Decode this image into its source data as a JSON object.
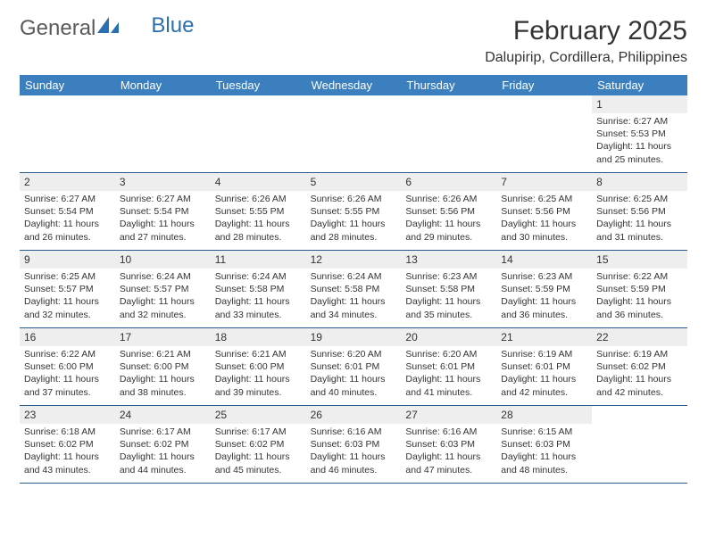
{
  "brand": {
    "part1": "General",
    "part2": "Blue"
  },
  "title": "February 2025",
  "location": "Dalupirip, Cordillera, Philippines",
  "day_headers": [
    "Sunday",
    "Monday",
    "Tuesday",
    "Wednesday",
    "Thursday",
    "Friday",
    "Saturday"
  ],
  "colors": {
    "header_bg": "#3b7fbf",
    "header_text": "#ffffff",
    "row_divider": "#2a5a8a",
    "daynum_bg": "#eeeeee",
    "text": "#333333",
    "brand_gray": "#5a5a5a",
    "brand_blue": "#2a6fb0",
    "page_bg": "#ffffff"
  },
  "layout": {
    "columns": 7,
    "font_daynum": 12,
    "font_info": 10.5,
    "font_header": 13,
    "font_title": 30,
    "font_location": 16
  },
  "weeks": [
    [
      {
        "n": "",
        "sunrise": "",
        "sunset": "",
        "daylight": ""
      },
      {
        "n": "",
        "sunrise": "",
        "sunset": "",
        "daylight": ""
      },
      {
        "n": "",
        "sunrise": "",
        "sunset": "",
        "daylight": ""
      },
      {
        "n": "",
        "sunrise": "",
        "sunset": "",
        "daylight": ""
      },
      {
        "n": "",
        "sunrise": "",
        "sunset": "",
        "daylight": ""
      },
      {
        "n": "",
        "sunrise": "",
        "sunset": "",
        "daylight": ""
      },
      {
        "n": "1",
        "sunrise": "Sunrise: 6:27 AM",
        "sunset": "Sunset: 5:53 PM",
        "daylight": "Daylight: 11 hours and 25 minutes."
      }
    ],
    [
      {
        "n": "2",
        "sunrise": "Sunrise: 6:27 AM",
        "sunset": "Sunset: 5:54 PM",
        "daylight": "Daylight: 11 hours and 26 minutes."
      },
      {
        "n": "3",
        "sunrise": "Sunrise: 6:27 AM",
        "sunset": "Sunset: 5:54 PM",
        "daylight": "Daylight: 11 hours and 27 minutes."
      },
      {
        "n": "4",
        "sunrise": "Sunrise: 6:26 AM",
        "sunset": "Sunset: 5:55 PM",
        "daylight": "Daylight: 11 hours and 28 minutes."
      },
      {
        "n": "5",
        "sunrise": "Sunrise: 6:26 AM",
        "sunset": "Sunset: 5:55 PM",
        "daylight": "Daylight: 11 hours and 28 minutes."
      },
      {
        "n": "6",
        "sunrise": "Sunrise: 6:26 AM",
        "sunset": "Sunset: 5:56 PM",
        "daylight": "Daylight: 11 hours and 29 minutes."
      },
      {
        "n": "7",
        "sunrise": "Sunrise: 6:25 AM",
        "sunset": "Sunset: 5:56 PM",
        "daylight": "Daylight: 11 hours and 30 minutes."
      },
      {
        "n": "8",
        "sunrise": "Sunrise: 6:25 AM",
        "sunset": "Sunset: 5:56 PM",
        "daylight": "Daylight: 11 hours and 31 minutes."
      }
    ],
    [
      {
        "n": "9",
        "sunrise": "Sunrise: 6:25 AM",
        "sunset": "Sunset: 5:57 PM",
        "daylight": "Daylight: 11 hours and 32 minutes."
      },
      {
        "n": "10",
        "sunrise": "Sunrise: 6:24 AM",
        "sunset": "Sunset: 5:57 PM",
        "daylight": "Daylight: 11 hours and 32 minutes."
      },
      {
        "n": "11",
        "sunrise": "Sunrise: 6:24 AM",
        "sunset": "Sunset: 5:58 PM",
        "daylight": "Daylight: 11 hours and 33 minutes."
      },
      {
        "n": "12",
        "sunrise": "Sunrise: 6:24 AM",
        "sunset": "Sunset: 5:58 PM",
        "daylight": "Daylight: 11 hours and 34 minutes."
      },
      {
        "n": "13",
        "sunrise": "Sunrise: 6:23 AM",
        "sunset": "Sunset: 5:58 PM",
        "daylight": "Daylight: 11 hours and 35 minutes."
      },
      {
        "n": "14",
        "sunrise": "Sunrise: 6:23 AM",
        "sunset": "Sunset: 5:59 PM",
        "daylight": "Daylight: 11 hours and 36 minutes."
      },
      {
        "n": "15",
        "sunrise": "Sunrise: 6:22 AM",
        "sunset": "Sunset: 5:59 PM",
        "daylight": "Daylight: 11 hours and 36 minutes."
      }
    ],
    [
      {
        "n": "16",
        "sunrise": "Sunrise: 6:22 AM",
        "sunset": "Sunset: 6:00 PM",
        "daylight": "Daylight: 11 hours and 37 minutes."
      },
      {
        "n": "17",
        "sunrise": "Sunrise: 6:21 AM",
        "sunset": "Sunset: 6:00 PM",
        "daylight": "Daylight: 11 hours and 38 minutes."
      },
      {
        "n": "18",
        "sunrise": "Sunrise: 6:21 AM",
        "sunset": "Sunset: 6:00 PM",
        "daylight": "Daylight: 11 hours and 39 minutes."
      },
      {
        "n": "19",
        "sunrise": "Sunrise: 6:20 AM",
        "sunset": "Sunset: 6:01 PM",
        "daylight": "Daylight: 11 hours and 40 minutes."
      },
      {
        "n": "20",
        "sunrise": "Sunrise: 6:20 AM",
        "sunset": "Sunset: 6:01 PM",
        "daylight": "Daylight: 11 hours and 41 minutes."
      },
      {
        "n": "21",
        "sunrise": "Sunrise: 6:19 AM",
        "sunset": "Sunset: 6:01 PM",
        "daylight": "Daylight: 11 hours and 42 minutes."
      },
      {
        "n": "22",
        "sunrise": "Sunrise: 6:19 AM",
        "sunset": "Sunset: 6:02 PM",
        "daylight": "Daylight: 11 hours and 42 minutes."
      }
    ],
    [
      {
        "n": "23",
        "sunrise": "Sunrise: 6:18 AM",
        "sunset": "Sunset: 6:02 PM",
        "daylight": "Daylight: 11 hours and 43 minutes."
      },
      {
        "n": "24",
        "sunrise": "Sunrise: 6:17 AM",
        "sunset": "Sunset: 6:02 PM",
        "daylight": "Daylight: 11 hours and 44 minutes."
      },
      {
        "n": "25",
        "sunrise": "Sunrise: 6:17 AM",
        "sunset": "Sunset: 6:02 PM",
        "daylight": "Daylight: 11 hours and 45 minutes."
      },
      {
        "n": "26",
        "sunrise": "Sunrise: 6:16 AM",
        "sunset": "Sunset: 6:03 PM",
        "daylight": "Daylight: 11 hours and 46 minutes."
      },
      {
        "n": "27",
        "sunrise": "Sunrise: 6:16 AM",
        "sunset": "Sunset: 6:03 PM",
        "daylight": "Daylight: 11 hours and 47 minutes."
      },
      {
        "n": "28",
        "sunrise": "Sunrise: 6:15 AM",
        "sunset": "Sunset: 6:03 PM",
        "daylight": "Daylight: 11 hours and 48 minutes."
      },
      {
        "n": "",
        "sunrise": "",
        "sunset": "",
        "daylight": ""
      }
    ]
  ]
}
